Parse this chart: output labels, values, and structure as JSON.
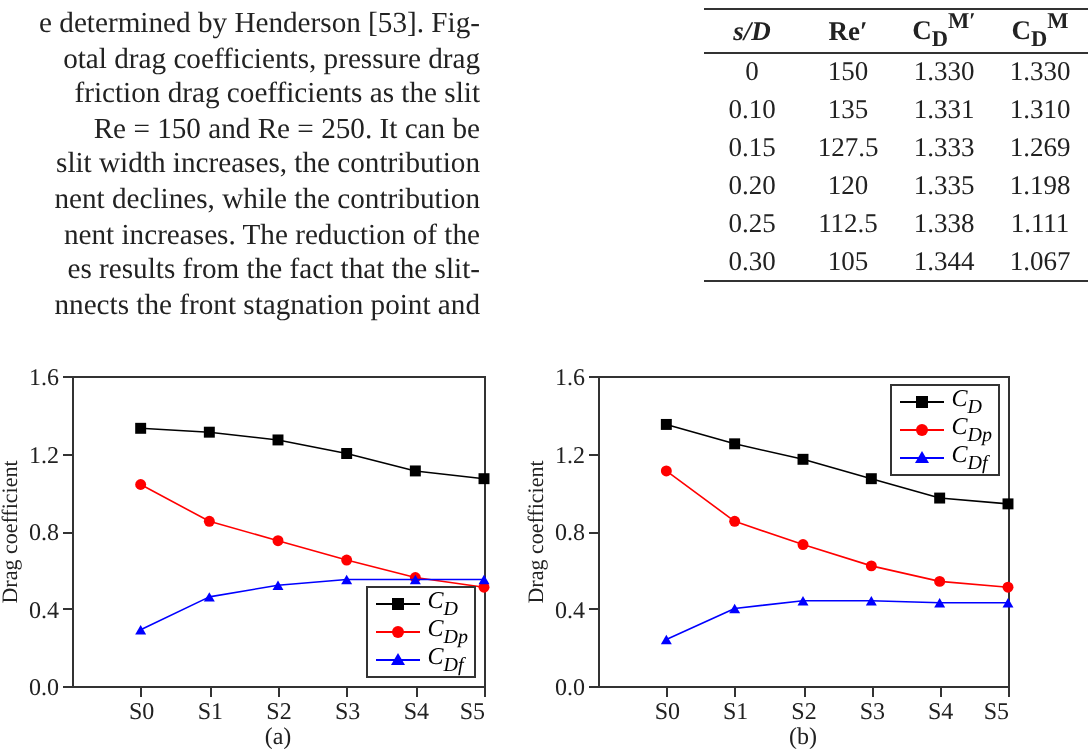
{
  "chart_data": [
    {
      "type": "other",
      "annotations": [
        "e determined by Henderson [53]. Fig-",
        "otal drag coefficients, pressure drag",
        "friction drag coefficients as the slit",
        "Re = 150 and Re = 250. It can be",
        "slit width increases, the contribution",
        "nent declines, while the contribution",
        "nent increases. The reduction of the",
        "es results from the fact that the slit-",
        "nnects the front stagnation point and"
      ]
    },
    {
      "type": "heatmap",
      "ylabel": "s/D",
      "categories": [
        "Re′",
        "C$_{D}$$^{M′}$",
        "C$_{D}$$^{M}$"
      ],
      "y_categories": [
        "0",
        "0.10",
        "0.15",
        "0.20",
        "0.25",
        "0.30"
      ],
      "cells": [
        [
          150,
          1.33,
          1.33
        ],
        [
          135,
          1.331,
          1.31
        ],
        [
          127.5,
          1.333,
          1.269
        ],
        [
          120,
          1.335,
          1.198
        ],
        [
          112.5,
          1.338,
          1.111
        ],
        [
          105,
          1.344,
          1.067
        ]
      ],
      "cell_labels": [
        [
          "150",
          "1.330",
          "1.330"
        ],
        [
          "135",
          "1.331",
          "1.310"
        ],
        [
          "127.5",
          "1.333",
          "1.269"
        ],
        [
          "120",
          "1.335",
          "1.198"
        ],
        [
          "112.5",
          "1.338",
          "1.111"
        ],
        [
          "105",
          "1.344",
          "1.067"
        ]
      ]
    },
    {
      "type": "line",
      "title": "(a)",
      "ylabel": "Drag coefficient",
      "categories": [
        "S0",
        "S1",
        "S2",
        "S3",
        "S4",
        "S5"
      ],
      "ylim": [
        0,
        1.6
      ],
      "yticks": [
        {
          "value": 0,
          "label": "0.0"
        },
        {
          "value": 0.4,
          "label": "0.4"
        },
        {
          "value": 0.8,
          "label": "0.8"
        },
        {
          "value": 1.2,
          "label": "1.2"
        },
        {
          "value": 1.6,
          "label": "1.6"
        }
      ],
      "legend": "bottom right",
      "series": [
        {
          "name": "C$_{D}$",
          "color": "#000000",
          "marker": "square",
          "values": [
            1.33,
            1.31,
            1.27,
            1.2,
            1.11,
            1.07
          ]
        },
        {
          "name": "C$_{Dp}$",
          "color": "#ff0000",
          "marker": "circle",
          "values": [
            1.04,
            0.85,
            0.75,
            0.65,
            0.56,
            0.51
          ]
        },
        {
          "name": "C$_{Df}$",
          "color": "#0000ff",
          "marker": "triangle",
          "values": [
            0.29,
            0.46,
            0.52,
            0.55,
            0.55,
            0.55
          ]
        }
      ]
    },
    {
      "type": "line",
      "title": "(b)",
      "ylabel": "Drag coefficient",
      "categories": [
        "S0",
        "S1",
        "S2",
        "S3",
        "S4",
        "S5"
      ],
      "ylim": [
        0,
        1.6
      ],
      "yticks": [
        {
          "value": 0,
          "label": "0.0"
        },
        {
          "value": 0.4,
          "label": "0.4"
        },
        {
          "value": 0.8,
          "label": "0.8"
        },
        {
          "value": 1.2,
          "label": "1.2"
        },
        {
          "value": 1.6,
          "label": "1.6"
        }
      ],
      "legend": "top right",
      "series": [
        {
          "name": "C$_{D}$",
          "color": "#000000",
          "marker": "square",
          "values": [
            1.35,
            1.25,
            1.17,
            1.07,
            0.97,
            0.94
          ]
        },
        {
          "name": "C$_{Dp}$",
          "color": "#ff0000",
          "marker": "circle",
          "values": [
            1.11,
            0.85,
            0.73,
            0.62,
            0.54,
            0.51
          ]
        },
        {
          "name": "C$_{Df}$",
          "color": "#0000ff",
          "marker": "triangle",
          "values": [
            0.24,
            0.4,
            0.44,
            0.44,
            0.43,
            0.43
          ]
        }
      ]
    }
  ]
}
